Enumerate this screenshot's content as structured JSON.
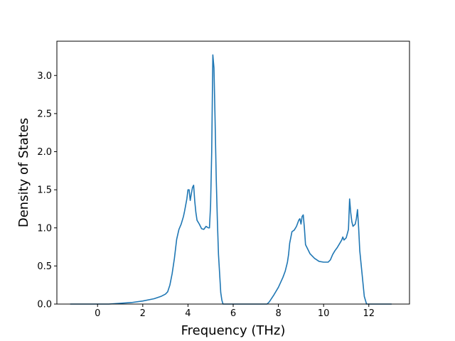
{
  "chart_data": {
    "type": "line",
    "title": "",
    "xlabel": "Frequency (THz)",
    "ylabel": "Density of States",
    "xlim": [
      -1.8,
      13.8
    ],
    "ylim": [
      0.0,
      3.45
    ],
    "xticks": [
      0,
      2,
      4,
      6,
      8,
      10,
      12
    ],
    "xtick_labels": [
      "0",
      "2",
      "4",
      "6",
      "8",
      "10",
      "12"
    ],
    "yticks": [
      0.0,
      0.5,
      1.0,
      1.5,
      2.0,
      2.5,
      3.0
    ],
    "ytick_labels": [
      "0.0",
      "0.5",
      "1.0",
      "1.5",
      "2.0",
      "2.5",
      "3.0"
    ],
    "grid": false,
    "legend": "none",
    "series": [
      {
        "color": "#1f77b4",
        "x": [
          -1.2,
          -0.5,
          0.0,
          0.5,
          1.0,
          1.5,
          2.0,
          2.5,
          2.8,
          3.0,
          3.1,
          3.2,
          3.3,
          3.4,
          3.5,
          3.6,
          3.7,
          3.8,
          3.85,
          3.9,
          3.95,
          4.0,
          4.05,
          4.1,
          4.15,
          4.2,
          4.25,
          4.3,
          4.35,
          4.4,
          4.5,
          4.6,
          4.7,
          4.8,
          4.9,
          4.95,
          5.0,
          5.05,
          5.1,
          5.15,
          5.2,
          5.25,
          5.3,
          5.35,
          5.4,
          5.45,
          5.5,
          5.55,
          5.6,
          5.7,
          5.8,
          6.0,
          7.0,
          7.5,
          7.6,
          7.8,
          8.0,
          8.2,
          8.3,
          8.4,
          8.45,
          8.5,
          8.6,
          8.7,
          8.8,
          8.9,
          8.95,
          9.0,
          9.05,
          9.1,
          9.15,
          9.2,
          9.3,
          9.4,
          9.6,
          9.8,
          10.0,
          10.2,
          10.3,
          10.4,
          10.5,
          10.6,
          10.7,
          10.8,
          10.85,
          10.9,
          11.0,
          11.1,
          11.15,
          11.2,
          11.25,
          11.3,
          11.4,
          11.45,
          11.5,
          11.55,
          11.6,
          11.7,
          11.8,
          11.9,
          12.0,
          12.5,
          13.0
        ],
        "y": [
          0.0,
          0.0,
          0.0,
          0.0,
          0.01,
          0.02,
          0.04,
          0.07,
          0.1,
          0.13,
          0.16,
          0.25,
          0.4,
          0.6,
          0.85,
          0.98,
          1.05,
          1.15,
          1.22,
          1.3,
          1.38,
          1.5,
          1.5,
          1.36,
          1.45,
          1.53,
          1.56,
          1.35,
          1.2,
          1.1,
          1.05,
          0.99,
          0.98,
          1.02,
          1.0,
          1.0,
          1.3,
          2.0,
          3.27,
          3.1,
          2.4,
          1.65,
          1.1,
          0.65,
          0.4,
          0.15,
          0.05,
          0.0,
          0.0,
          0.0,
          0.0,
          0.0,
          0.0,
          0.0,
          0.03,
          0.12,
          0.22,
          0.35,
          0.43,
          0.55,
          0.65,
          0.8,
          0.95,
          0.97,
          1.02,
          1.1,
          1.12,
          1.05,
          1.15,
          1.17,
          1.0,
          0.78,
          0.72,
          0.66,
          0.6,
          0.56,
          0.55,
          0.55,
          0.58,
          0.65,
          0.7,
          0.74,
          0.79,
          0.84,
          0.88,
          0.84,
          0.87,
          0.98,
          1.38,
          1.2,
          1.08,
          1.02,
          1.05,
          1.12,
          1.24,
          1.0,
          0.7,
          0.4,
          0.1,
          0.0,
          0.0,
          0.0,
          0.0
        ]
      }
    ]
  }
}
